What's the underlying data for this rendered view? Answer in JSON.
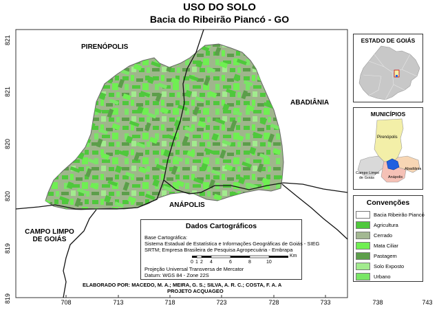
{
  "title": "USO DO SOLO",
  "subtitle": "Bacia do Ribeirão Piancó - GO",
  "x_ticks": [
    "708",
    "713",
    "718",
    "723",
    "728",
    "733",
    "738",
    "743"
  ],
  "y_ticks": [
    "821",
    "821",
    "820",
    "820",
    "819",
    "819"
  ],
  "places": {
    "pirenopolis": "PIRENÓPOLIS",
    "abadiania": "ABADIÂNIA",
    "anapolis": "ANÁPOLIS",
    "campo_limpo_1": "CAMPO LIMPO",
    "campo_limpo_2": "DE GOIÁS"
  },
  "estado": {
    "title": "ESTADO DE GOIÁS"
  },
  "municipios": {
    "title": "MUNICÍPIOS",
    "labels": [
      "Pirenópolis",
      "Campo Limpo",
      "de Goiás",
      "Abadiânia",
      "Anápolis"
    ]
  },
  "legend": {
    "title": "Convenções",
    "items": [
      {
        "label": "Bacia Ribeirão Piancó",
        "color": "#ffffff"
      },
      {
        "label": "Agricultura",
        "color": "#4fc83c"
      },
      {
        "label": "Cerrado",
        "color": "#a3b892"
      },
      {
        "label": "Mata Ciliar",
        "color": "#6fef52"
      },
      {
        "label": "Pastagem",
        "color": "#5c9e4a"
      },
      {
        "label": "Solo Exposto",
        "color": "#a2eb8e"
      },
      {
        "label": "Urbano",
        "color": "#79e665"
      }
    ]
  },
  "dados": {
    "title": "Dados Cartográficos",
    "lines": [
      "Base Cartográfica:",
      "Sistema Estadual de Estatística e Informações Geográficas de Goiás - SIEG",
      "SRTM; Empresa Brasileira de Pesquisa Agropecuária - Embrapa"
    ],
    "scale_labels": [
      "0",
      "1",
      "2",
      "4",
      "6",
      "8",
      "10"
    ],
    "scale_unit": "Km",
    "projection": "Projeção Universal Transversa de Mercator",
    "datum": "Datum: WGS 84 - Zone 22S"
  },
  "credits": {
    "line1": "ELABORADO POR: MACEDO, M. A.; MEIRA, G. S.; SILVA, A. R. C.; COSTA, F. A. A",
    "line2": "PROJETO ACQUAGEO"
  },
  "colors": {
    "agricultura": "#4fc83c",
    "cerrado": "#a3b892",
    "mata_ciliar": "#6fef52",
    "pastagem": "#5c9e4a",
    "solo_exposto": "#a2eb8e",
    "urbano": "#79e665",
    "goias_gray": "#c8c8c8",
    "pirenopolis": "#f3efa8",
    "anapolis": "#f5c1b6",
    "abadiania": "#f7d6b4",
    "campo_limpo": "#d9d9d9",
    "bacia_blue": "#1f5fe0"
  }
}
